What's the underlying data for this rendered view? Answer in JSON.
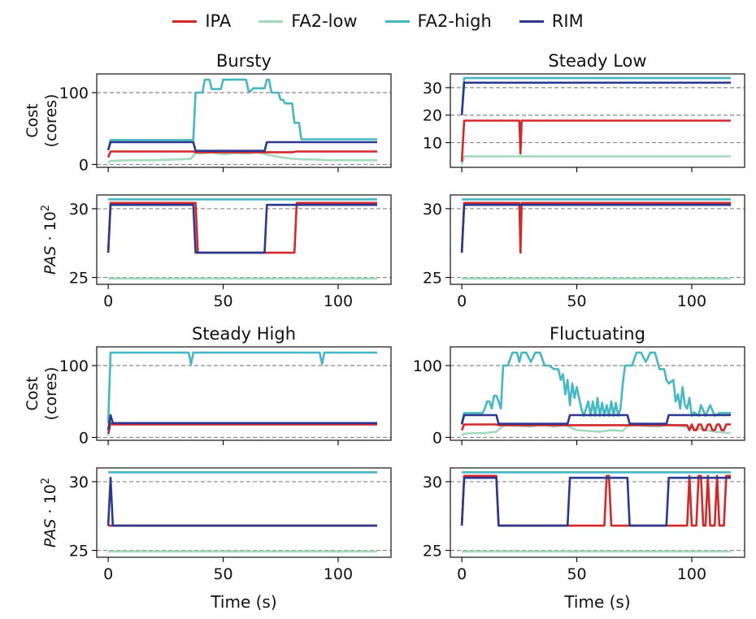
{
  "chart_data": {
    "type": "line",
    "legend": {
      "placement": "top-center",
      "entries": [
        {
          "name": "IPA",
          "color": "#d62728"
        },
        {
          "name": "FA2-low",
          "color": "#a1d9bd"
        },
        {
          "name": "FA2-high",
          "color": "#44b8c4"
        },
        {
          "name": "RIM",
          "color": "#2b388f"
        }
      ]
    },
    "xlabel": "Time (s)",
    "xticks": [
      0,
      50,
      100
    ],
    "xlim": [
      -5,
      123
    ],
    "cost_ylabel": [
      "Cost",
      "(cores)"
    ],
    "pas_ylabel": "PAS · 10²",
    "grid": "horizontal dashed at ticks",
    "panels": [
      {
        "title": "Bursty",
        "cost": {
          "ylim": [
            -4,
            126
          ],
          "yticks": [
            0,
            100
          ],
          "series": {
            "FA2-high": {
              "x": [
                0,
                1,
                37,
                38,
                41,
                42,
                44,
                45,
                49,
                50,
                60,
                61,
                62,
                63,
                68,
                69,
                70,
                71,
                74,
                75,
                76,
                77,
                80,
                81,
                83,
                84,
                117
              ],
              "y": [
                20,
                34,
                34,
                100,
                100,
                118,
                118,
                105,
                105,
                118,
                118,
                102,
                102,
                106,
                106,
                118,
                118,
                100,
                100,
                90,
                90,
                85,
                85,
                58,
                58,
                35,
                35
              ]
            },
            "RIM": {
              "x": [
                0,
                1,
                37,
                38,
                68,
                69,
                117
              ],
              "y": [
                20,
                31,
                31,
                19,
                19,
                31,
                31
              ]
            },
            "IPA": {
              "x": [
                0,
                1,
                37,
                38,
                80,
                82,
                117
              ],
              "y": [
                10,
                18,
                18,
                17,
                17,
                18,
                18
              ]
            },
            "FA2-low": {
              "x": [
                0,
                1,
                10,
                20,
                30,
                36,
                38,
                40,
                45,
                50,
                55,
                60,
                65,
                70,
                72,
                75,
                80,
                85,
                90,
                95,
                100,
                105,
                110,
                117
              ],
              "y": [
                2,
                5,
                6,
                6,
                7,
                8,
                16,
                15,
                17,
                14,
                16,
                15,
                17,
                13,
                12,
                10,
                8,
                7,
                7,
                6,
                6,
                6,
                6,
                6
              ]
            }
          }
        },
        "pas": {
          "ylim": [
            24.5,
            31.0
          ],
          "yticks": [
            25,
            30
          ],
          "series": {
            "FA2-high": {
              "x": [
                0,
                117
              ],
              "y": [
                30.68,
                30.68
              ]
            },
            "FA2-low": {
              "x": [
                0,
                117
              ],
              "y": [
                24.92,
                24.92
              ]
            },
            "IPA": {
              "x": [
                0,
                1,
                38,
                39,
                81,
                82,
                117
              ],
              "y": [
                26.8,
                30.42,
                30.42,
                26.8,
                26.8,
                30.42,
                30.42
              ]
            },
            "RIM": {
              "x": [
                0,
                1,
                37,
                38,
                68,
                69,
                117
              ],
              "y": [
                26.8,
                30.28,
                30.28,
                26.8,
                26.8,
                30.28,
                30.28
              ]
            }
          }
        }
      },
      {
        "title": "Steady Low",
        "cost": {
          "ylim": [
            1,
            35
          ],
          "yticks": [
            10,
            20,
            30
          ],
          "series": {
            "FA2-high": {
              "x": [
                0,
                1,
                117
              ],
              "y": [
                20,
                33.5,
                33.5
              ]
            },
            "RIM": {
              "x": [
                0,
                1,
                117
              ],
              "y": [
                20,
                31.8,
                31.8
              ]
            },
            "IPA": {
              "x": [
                0,
                1,
                25,
                25.5,
                26,
                117
              ],
              "y": [
                3,
                18,
                18,
                6,
                18,
                18
              ]
            },
            "FA2-low": {
              "x": [
                0,
                1,
                117
              ],
              "y": [
                2,
                5,
                5
              ]
            }
          }
        },
        "pas": {
          "ylim": [
            24.5,
            31.0
          ],
          "yticks": [
            25,
            30
          ],
          "series": {
            "FA2-high": {
              "x": [
                0,
                117
              ],
              "y": [
                30.68,
                30.68
              ]
            },
            "FA2-low": {
              "x": [
                0,
                117
              ],
              "y": [
                24.92,
                24.92
              ]
            },
            "IPA": {
              "x": [
                0,
                1,
                25,
                25.5,
                26,
                117
              ],
              "y": [
                26.8,
                30.42,
                30.42,
                26.8,
                30.42,
                30.42
              ]
            },
            "RIM": {
              "x": [
                0,
                1,
                117
              ],
              "y": [
                26.8,
                30.28,
                30.28
              ]
            }
          }
        }
      },
      {
        "title": "Steady High",
        "cost": {
          "ylim": [
            -4,
            126
          ],
          "yticks": [
            0,
            100
          ],
          "series": {
            "FA2-high": {
              "x": [
                0,
                1,
                35,
                36,
                37,
                92,
                93,
                94,
                117
              ],
              "y": [
                20,
                118,
                118,
                102,
                118,
                118,
                102,
                118,
                118
              ]
            },
            "IPA": {
              "x": [
                0,
                1,
                2,
                117
              ],
              "y": [
                5,
                20,
                18,
                18
              ]
            },
            "FA2-low": {
              "x": [
                0,
                1,
                2,
                117
              ],
              "y": [
                2,
                19,
                18,
                18
              ]
            },
            "RIM": {
              "x": [
                0,
                1,
                2,
                117
              ],
              "y": [
                10,
                31,
                20,
                20
              ]
            }
          }
        },
        "pas": {
          "ylim": [
            24.5,
            31.0
          ],
          "yticks": [
            25,
            30
          ],
          "series": {
            "FA2-high": {
              "x": [
                0,
                117
              ],
              "y": [
                30.68,
                30.68
              ]
            },
            "FA2-low": {
              "x": [
                0,
                117
              ],
              "y": [
                24.92,
                24.92
              ]
            },
            "IPA": {
              "x": [
                0,
                117
              ],
              "y": [
                26.8,
                26.8
              ]
            },
            "RIM": {
              "x": [
                0,
                1,
                2,
                117
              ],
              "y": [
                26.8,
                30.28,
                26.8,
                26.8
              ]
            }
          }
        }
      },
      {
        "title": "Fluctuating",
        "cost": {
          "ylim": [
            -4,
            126
          ],
          "yticks": [
            0,
            100
          ],
          "series": {
            "FA2-high": {
              "x": [
                0,
                1,
                8,
                9,
                10,
                11,
                12,
                13,
                14,
                15,
                16,
                17,
                18,
                20,
                22,
                24,
                25,
                26,
                28,
                30,
                32,
                34,
                36,
                38,
                40,
                42,
                43,
                44,
                45,
                46,
                47,
                48,
                49,
                50,
                52,
                53,
                54,
                55,
                56,
                57,
                58,
                59,
                60,
                61,
                62,
                63,
                64,
                65,
                66,
                67,
                68,
                69,
                70,
                71,
                72,
                74,
                76,
                78,
                80,
                82,
                84,
                86,
                88,
                89,
                90,
                92,
                93,
                94,
                95,
                96,
                97,
                98,
                99,
                100,
                101,
                103,
                104,
                106,
                108,
                110,
                112,
                114,
                117
              ],
              "y": [
                20,
                34,
                34,
                34,
                40,
                50,
                50,
                40,
                58,
                58,
                50,
                40,
                100,
                100,
                118,
                118,
                105,
                118,
                118,
                105,
                118,
                118,
                100,
                100,
                95,
                95,
                80,
                88,
                60,
                80,
                45,
                75,
                55,
                70,
                40,
                30,
                40,
                50,
                30,
                50,
                30,
                55,
                30,
                48,
                30,
                45,
                30,
                50,
                30,
                48,
                30,
                40,
                75,
                100,
                100,
                100,
                118,
                118,
                105,
                118,
                118,
                95,
                95,
                80,
                75,
                80,
                50,
                60,
                40,
                70,
                45,
                40,
                55,
                30,
                35,
                30,
                45,
                30,
                45,
                30,
                34,
                34,
                34
              ]
            },
            "RIM": {
              "x": [
                0,
                1,
                15,
                16,
                46,
                47,
                72,
                73,
                89,
                90,
                117
              ],
              "y": [
                18,
                31,
                31,
                19,
                19,
                31,
                31,
                19,
                19,
                31,
                31
              ]
            },
            "IPA": {
              "x": [
                0,
                1,
                15,
                16,
                98,
                99,
                100,
                101,
                102,
                103,
                104,
                105,
                106,
                107,
                108,
                109,
                110,
                111,
                112,
                113,
                114,
                115,
                116,
                117
              ],
              "y": [
                10,
                18,
                18,
                17,
                17,
                10,
                18,
                10,
                10,
                18,
                18,
                10,
                10,
                18,
                18,
                10,
                10,
                18,
                18,
                10,
                10,
                18,
                18,
                18
              ]
            },
            "FA2-low": {
              "x": [
                0,
                1,
                5,
                10,
                15,
                18,
                20,
                25,
                30,
                35,
                40,
                45,
                48,
                50,
                55,
                60,
                65,
                70,
                72,
                75,
                80,
                85,
                90,
                95,
                100,
                105,
                110,
                117
              ],
              "y": [
                2,
                5,
                6,
                6,
                8,
                16,
                17,
                16,
                15,
                18,
                15,
                17,
                13,
                10,
                9,
                8,
                10,
                9,
                16,
                17,
                16,
                15,
                18,
                16,
                13,
                11,
                8,
                6
              ]
            }
          }
        },
        "pas": {
          "ylim": [
            24.5,
            31.0
          ],
          "yticks": [
            25,
            30
          ],
          "series": {
            "FA2-high": {
              "x": [
                0,
                117
              ],
              "y": [
                30.68,
                30.68
              ]
            },
            "FA2-low": {
              "x": [
                0,
                117
              ],
              "y": [
                24.92,
                24.92
              ]
            },
            "IPA": {
              "x": [
                0,
                1,
                15,
                16,
                62,
                63,
                64,
                65,
                98,
                99,
                100,
                101,
                102,
                103,
                104,
                105,
                106,
                107,
                108,
                109,
                110,
                111,
                112,
                113,
                114,
                115,
                116,
                117
              ],
              "y": [
                26.8,
                30.42,
                30.42,
                26.8,
                26.8,
                30.42,
                30.42,
                26.8,
                26.8,
                30.42,
                26.8,
                26.8,
                26.8,
                30.42,
                30.42,
                26.8,
                26.8,
                30.42,
                26.8,
                26.8,
                26.8,
                30.42,
                26.8,
                26.8,
                26.8,
                30.42,
                30.42,
                30.42
              ]
            },
            "RIM": {
              "x": [
                0,
                1,
                15,
                16,
                46,
                47,
                72,
                73,
                89,
                90,
                117
              ],
              "y": [
                26.8,
                30.28,
                30.28,
                26.8,
                26.8,
                30.28,
                30.28,
                26.8,
                26.8,
                30.28,
                30.28
              ]
            }
          }
        }
      }
    ]
  }
}
